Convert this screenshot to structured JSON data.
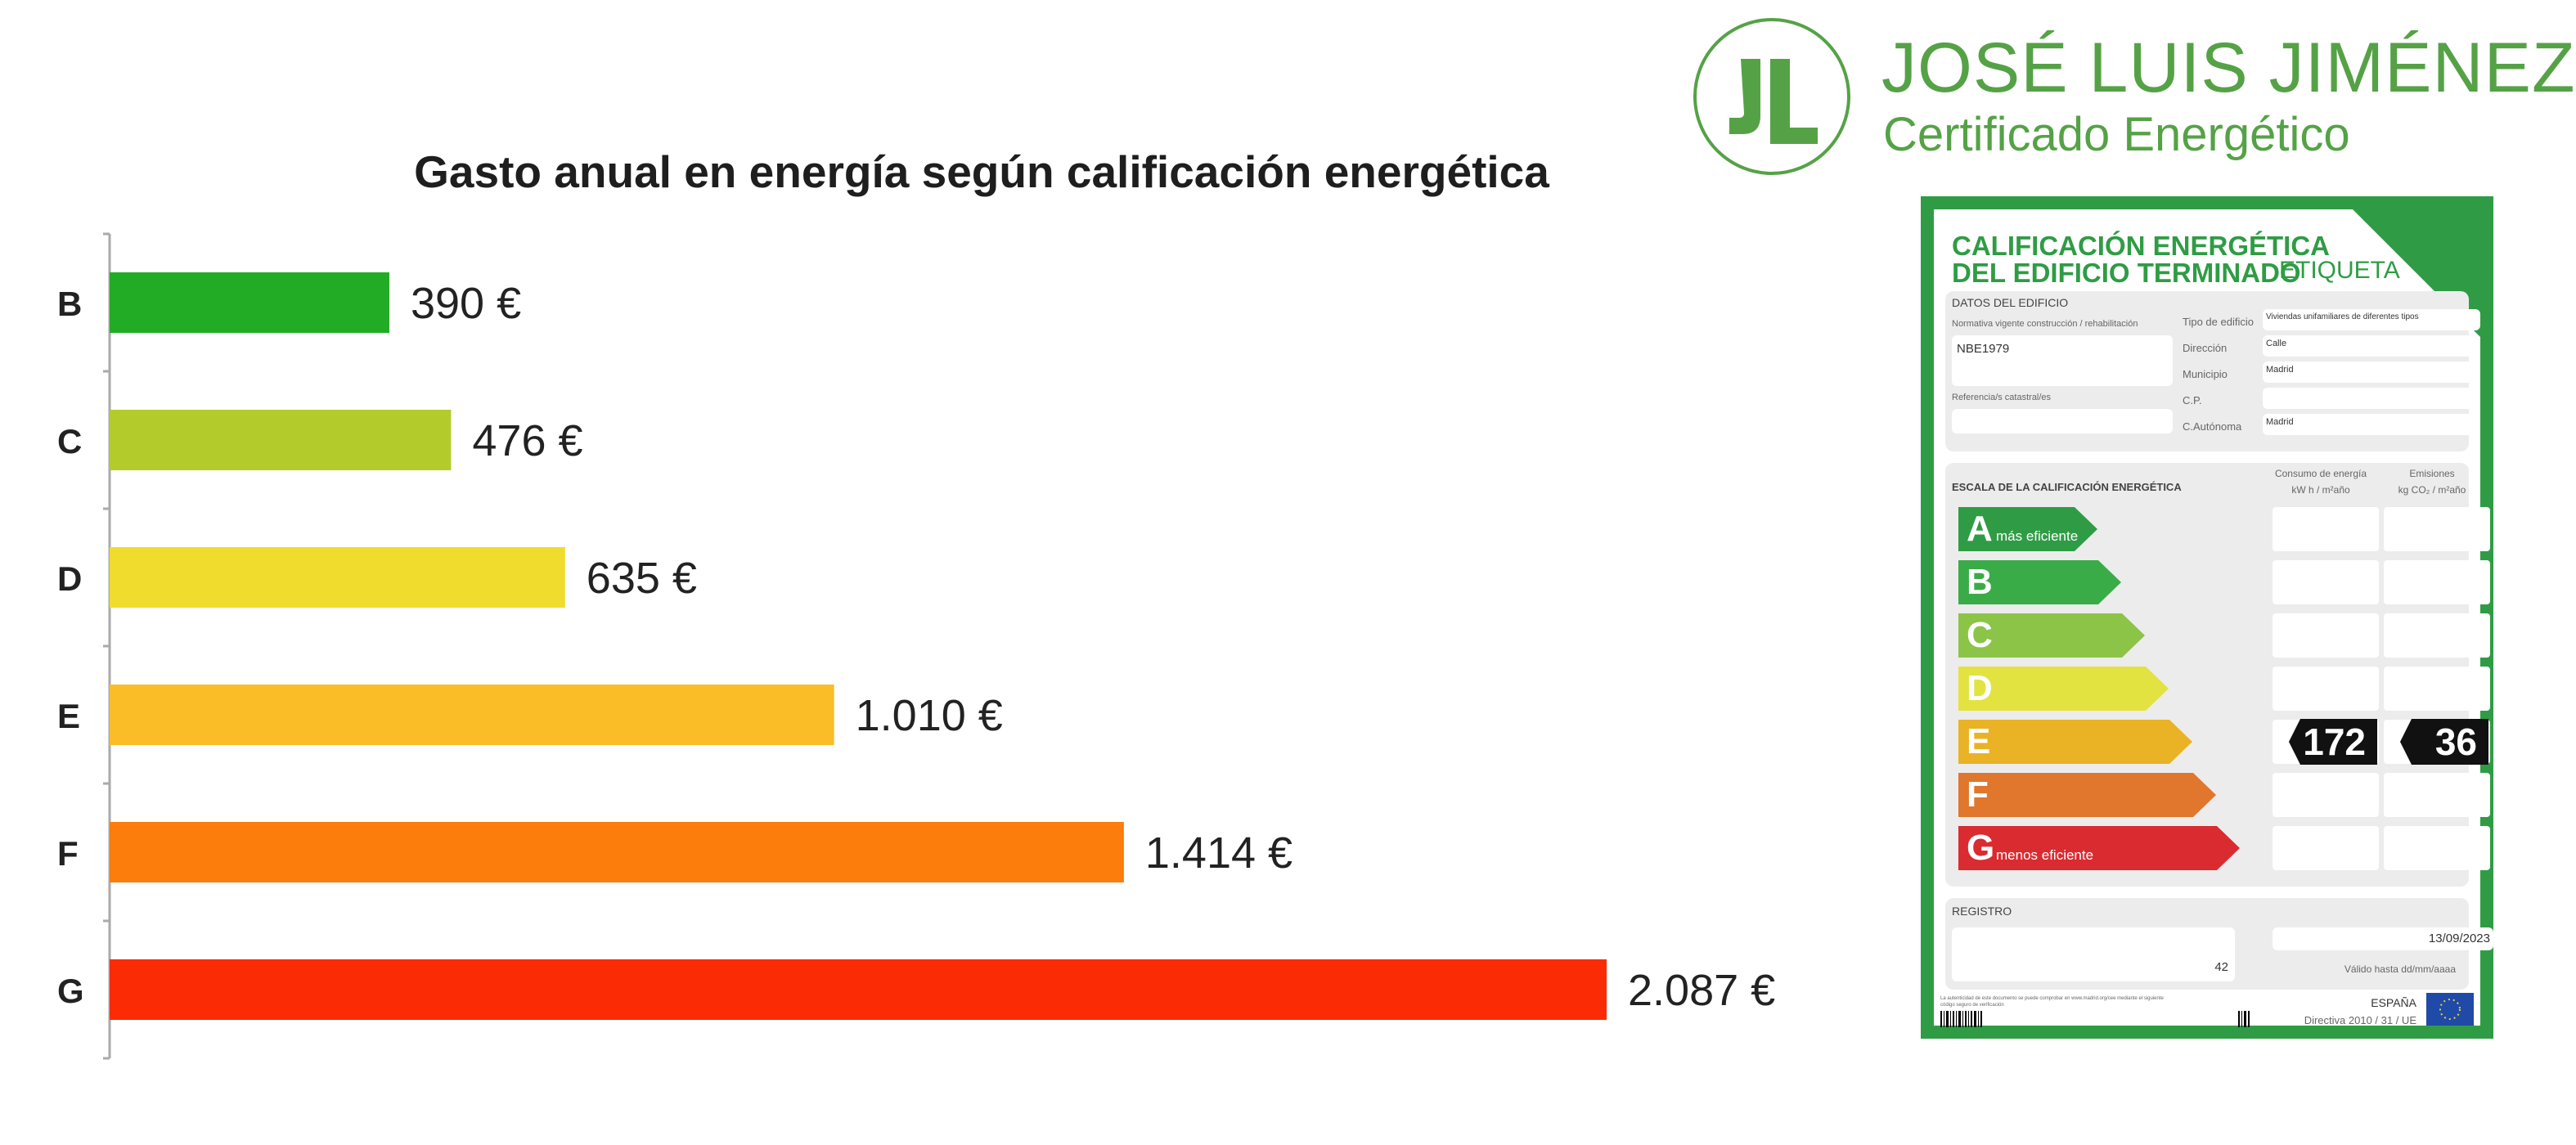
{
  "chart_data": {
    "type": "bar",
    "orientation": "horizontal",
    "title": "Gasto anual en energía según calificación energética",
    "categories": [
      "B",
      "C",
      "D",
      "E",
      "F",
      "G"
    ],
    "values": [
      390,
      476,
      635,
      1010,
      1414,
      2087
    ],
    "value_labels": [
      "390 €",
      "476 €",
      "635 €",
      "1.010 €",
      "1.414 €",
      "2.087 €"
    ],
    "colors": [
      "#22ac25",
      "#b3cc2c",
      "#f0dc2c",
      "#fbbd27",
      "#fc7d0c",
      "#fb2b06"
    ],
    "xlim": [
      0,
      2087
    ],
    "grid": false,
    "legend": "none"
  },
  "logo": {
    "name": "JOSÉ LUIS JIMÉNEZ",
    "subtitle": "Certificado Energético",
    "color": "#55a246"
  },
  "label": {
    "title_line1": "CALIFICACIÓN ENERGÉTICA",
    "title_line2": "DEL EDIFICIO TERMINADO",
    "tag": "ETIQUETA",
    "datos_title": "DATOS DEL EDIFICIO",
    "normativa_label": "Normativa vigente construcción / rehabilitación",
    "normativa_value": "NBE1979",
    "referencias_label": "Referencia/s catastral/es",
    "tipo_label": "Tipo de edificio",
    "tipo_value": "Viviendas unifamiliares de diferentes tipos",
    "direccion_label": "Dirección",
    "direccion_value": "Calle",
    "municipio_label": "Municipio",
    "municipio_value": "Madrid",
    "cp_label": "C.P.",
    "cp_value": "",
    "autonomia_label": "C.Autónoma",
    "autonomia_value": "Madrid",
    "escala_title": "ESCALA DE LA CALIFICACIÓN ENERGÉTICA",
    "consumo_header1": "Consumo de energía",
    "consumo_header2": "kW h / m²año",
    "emisiones_header1": "Emisiones",
    "emisiones_header2": "kg CO₂ / m²año",
    "classes": [
      {
        "letter": "A",
        "sub": "más eficiente",
        "color": "#2f9c45"
      },
      {
        "letter": "B",
        "sub": "",
        "color": "#3aac47"
      },
      {
        "letter": "C",
        "sub": "",
        "color": "#8cc447"
      },
      {
        "letter": "D",
        "sub": "",
        "color": "#e2e340"
      },
      {
        "letter": "E",
        "sub": "",
        "color": "#eab325"
      },
      {
        "letter": "F",
        "sub": "",
        "color": "#e1762d"
      },
      {
        "letter": "G",
        "sub": "menos eficiente",
        "color": "#d92b30"
      }
    ],
    "rated_class": "E",
    "consumo_value": "172",
    "emisiones_value": "36",
    "registro_title": "REGISTRO",
    "registro_value": "42",
    "fecha_value": "13/09/2023",
    "valido": "Válido hasta dd/mm/aaaa",
    "autenticidad": "La autenticidad de este documento se puede comprobar en www.madrid.org/cee mediante el siguiente código seguro de verificación",
    "pais": "ESPAÑA",
    "directiva": "Directiva 2010 / 31 / UE"
  }
}
